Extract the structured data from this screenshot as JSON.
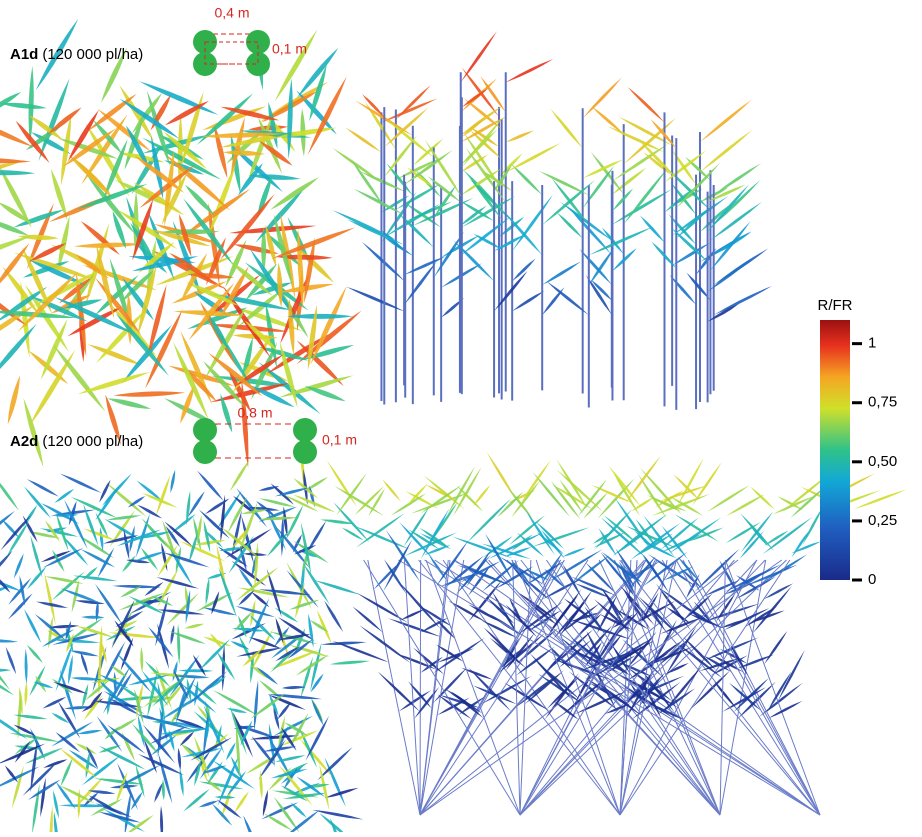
{
  "panels": [
    {
      "id": "A1d",
      "density": "(120 000 pl/ha)",
      "row_spacing": "0,4 m",
      "plant_spacing": "0,1 m"
    },
    {
      "id": "A2d",
      "density": "(120 000 pl/ha)",
      "row_spacing": "0,8 m",
      "plant_spacing": "0,1 m"
    }
  ],
  "colorbar": {
    "title": "R/FR",
    "lim": [
      0,
      1.1
    ],
    "ticks": [
      {
        "value": 1,
        "label": "1"
      },
      {
        "value": 0.75,
        "label": "0,75"
      },
      {
        "value": 0.5,
        "label": "0,50"
      },
      {
        "value": 0.25,
        "label": "0,25"
      },
      0
    ]
  }
}
